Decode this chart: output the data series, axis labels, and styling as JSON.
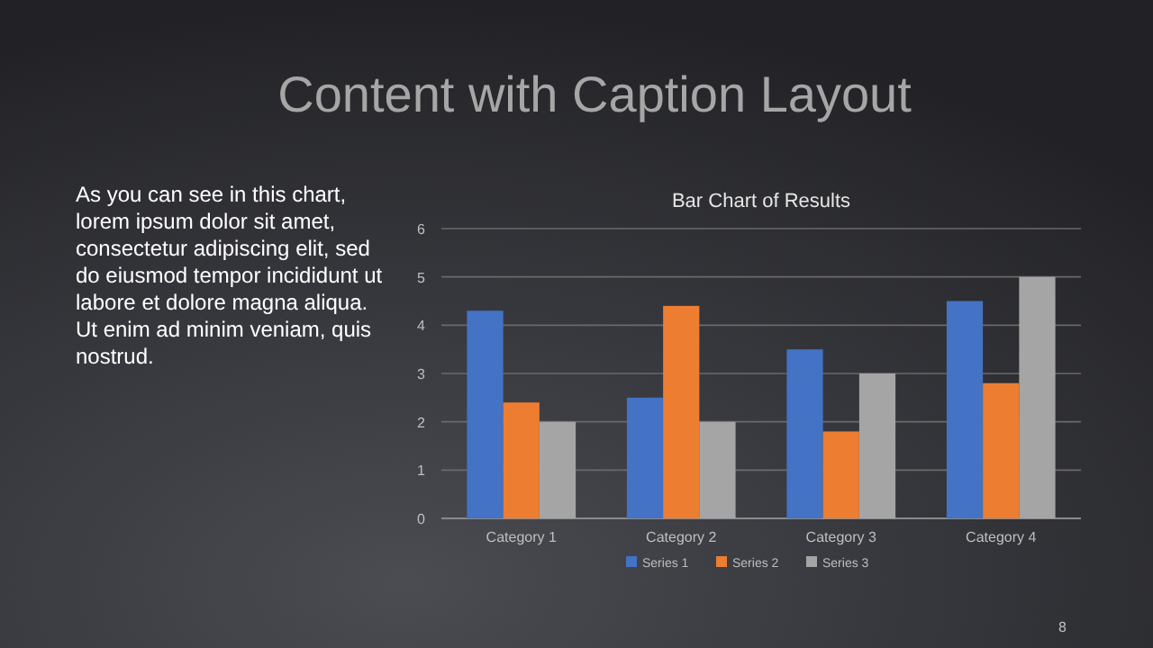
{
  "chart_data": {
    "type": "bar",
    "title": "Content with Caption Layout",
    "subtitle": "Bar Chart of Results",
    "categories": [
      "Category 1",
      "Category 2",
      "Category 3",
      "Category 4"
    ],
    "series": [
      {
        "name": "Series 1",
        "color": "#4472c4",
        "values": [
          4.3,
          2.5,
          3.5,
          4.5
        ]
      },
      {
        "name": "Series 2",
        "color": "#ed7d31",
        "values": [
          2.4,
          4.4,
          1.8,
          2.8
        ]
      },
      {
        "name": "Series 3",
        "color": "#a5a5a5",
        "values": [
          2,
          2,
          3,
          5
        ]
      }
    ],
    "ylim": [
      0,
      6
    ],
    "yticks": [
      0,
      1,
      2,
      3,
      4,
      5,
      6
    ],
    "grid": "y",
    "legend": "bottom",
    "annotations": [
      "As you can see in this chart,",
      "lorem ipsum dolor sit amet,",
      "consectetur adipiscing elit, sed",
      "do eiusmod tempor incididunt ut",
      "labore et dolore magna aliqua.",
      "Ut enim ad minim veniam, quis",
      "nostrud.",
      "8"
    ]
  }
}
